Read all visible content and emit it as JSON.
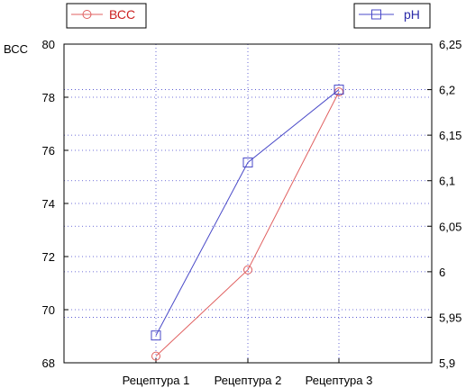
{
  "chart_data": {
    "type": "line",
    "categories": [
      "Рецептура 1",
      "Рецептура 2",
      "Рецептура 3"
    ],
    "series": [
      {
        "name": "ВСС",
        "axis": "left",
        "color": "#e06060",
        "marker": "circle",
        "values": [
          68.25,
          71.5,
          78.2
        ]
      },
      {
        "name": "pH",
        "axis": "right",
        "color": "#4a4ac8",
        "marker": "square",
        "values": [
          5.93,
          6.12,
          6.2
        ]
      }
    ],
    "ylabel": "ВСС",
    "ylim": [
      68,
      80
    ],
    "yticks": [
      "68",
      "70",
      "72",
      "74",
      "76",
      "78",
      "80"
    ],
    "y2lim": [
      5.9,
      6.25
    ],
    "y2ticks": [
      "5,9",
      "5,95",
      "6",
      "6,05",
      "6,1",
      "6,15",
      "6,2",
      "6,25"
    ],
    "grid": true,
    "legend": [
      "top-left",
      "top-right"
    ]
  }
}
